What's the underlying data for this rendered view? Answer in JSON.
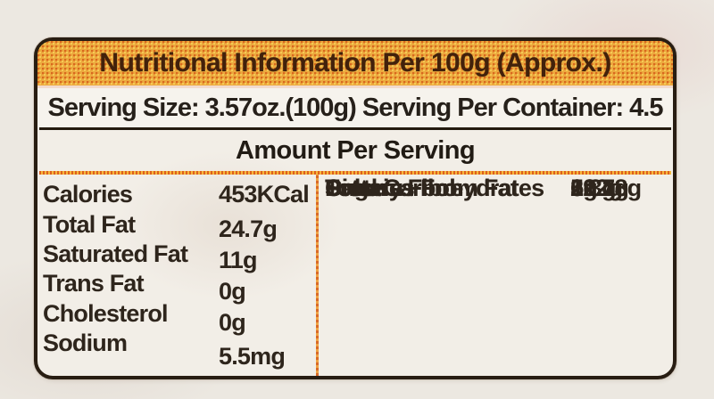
{
  "label": {
    "title": "Nutritional Information Per 100g (Approx.)",
    "serving_line": "Serving Size: 3.57oz.(100g) Serving Per Container: 4.5",
    "amount_heading": "Amount Per Serving",
    "left_column": {
      "rows": [
        {
          "label": "Calories",
          "value": "453KCal"
        },
        {
          "label": "Total Fat",
          "value": "24.7g"
        },
        {
          "label": "Saturated Fat",
          "value": "11g"
        },
        {
          "label": "Trans Fat",
          "value": "0g"
        },
        {
          "label": "Cholesterol",
          "value": "0g"
        },
        {
          "label": "Sodium",
          "value": "5.5mg"
        }
      ]
    },
    "right_column": {
      "rows": [
        {
          "label": "Calories From Fat",
          "value": "222g"
        },
        {
          "label": "Total Carbohydrates",
          "value": "51.7g"
        },
        {
          "label": "Dietary Fibre",
          "value": "5.3g"
        },
        {
          "label": "Sugars",
          "value": "19.18g"
        },
        {
          "label": "Protein",
          "value": "6g"
        }
      ]
    },
    "colors": {
      "page_bg": "#ece8e1",
      "panel_bg": "#f2eee7",
      "header_bg": "#eca93e",
      "header_text": "#42210b",
      "body_text": "#2e251c",
      "border": "#281d12",
      "orange_rule": "#f0a43c",
      "column_divider": "#d96a28"
    }
  }
}
